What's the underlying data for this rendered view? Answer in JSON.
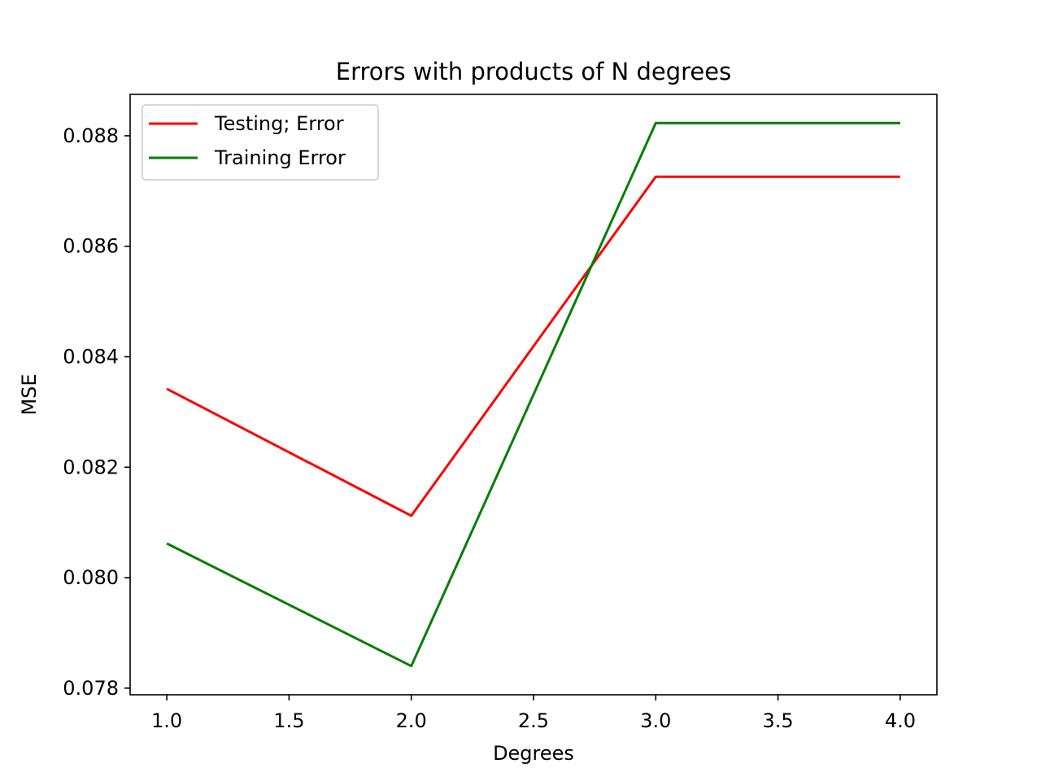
{
  "chart_data": {
    "type": "line",
    "title": "Errors with products of N degrees",
    "xlabel": "Degrees",
    "ylabel": "MSE",
    "x": [
      1.0,
      2.0,
      3.0,
      4.0
    ],
    "xlim": [
      0.85,
      4.15
    ],
    "ylim": [
      0.07788,
      0.08875
    ],
    "xticks": [
      1.0,
      1.5,
      2.0,
      2.5,
      3.0,
      3.5,
      4.0
    ],
    "xtick_labels": [
      "1.0",
      "1.5",
      "2.0",
      "2.5",
      "3.0",
      "3.5",
      "4.0"
    ],
    "yticks": [
      0.078,
      0.08,
      0.082,
      0.084,
      0.086,
      0.088
    ],
    "ytick_labels": [
      "0.078",
      "0.080",
      "0.082",
      "0.084",
      "0.086",
      "0.088"
    ],
    "grid": false,
    "legend_position": "top-left",
    "series": [
      {
        "name": "Testing; Error",
        "color": "#ff0000",
        "values": [
          0.08342,
          0.08112,
          0.08726,
          0.08726
        ]
      },
      {
        "name": "Training Error",
        "color": "#008000",
        "values": [
          0.08062,
          0.0784,
          0.08823,
          0.08823
        ]
      }
    ]
  }
}
